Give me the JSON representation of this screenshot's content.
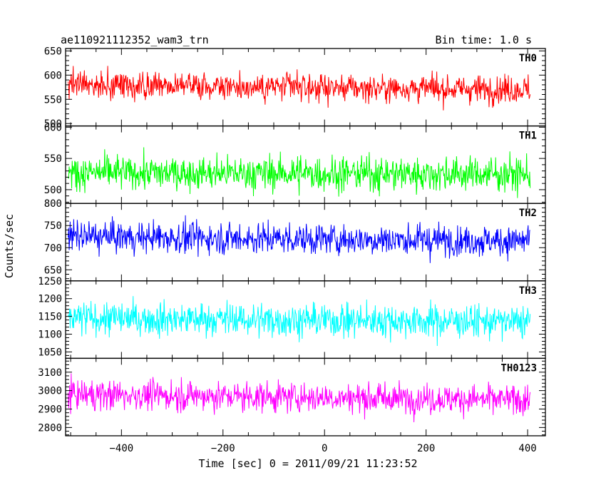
{
  "chart_data": {
    "type": "line",
    "title": "ae110921112352_wam3_trn",
    "bin_time_label": "Bin time: 1.0 s",
    "xlabel": "Time [sec] 0 = 2011/09/21 11:23:52",
    "ylabel": "Counts/sec",
    "xlim": [
      -510,
      435
    ],
    "x_ticks": [
      -400,
      -200,
      0,
      200,
      400
    ],
    "x_range": [
      -505,
      405
    ],
    "bin_time_s": 1.0,
    "grid": false,
    "panels": [
      {
        "name": "TH0",
        "color": "#ff0000",
        "ylim": [
          495,
          655
        ],
        "y_ticks": [
          500,
          550,
          600,
          650
        ],
        "mean": 580,
        "sigma": 22,
        "trend": [
          [
            -505,
            580
          ],
          [
            405,
            570
          ]
        ]
      },
      {
        "name": "TH1",
        "color": "#00ff00",
        "ylim": [
          478,
          602
        ],
        "y_ticks": [
          500,
          550,
          600
        ],
        "mean": 527,
        "sigma": 21,
        "trend": [
          [
            -505,
            527
          ],
          [
            405,
            525
          ]
        ]
      },
      {
        "name": "TH2",
        "color": "#0000ff",
        "ylim": [
          625,
          800
        ],
        "y_ticks": [
          650,
          700,
          750,
          800
        ],
        "mean": 720,
        "sigma": 27,
        "trend": [
          [
            -505,
            725
          ],
          [
            405,
            715
          ]
        ]
      },
      {
        "name": "TH3",
        "color": "#00ffff",
        "ylim": [
          1032,
          1250
        ],
        "y_ticks": [
          1050,
          1100,
          1150,
          1200,
          1250
        ],
        "mean": 1140,
        "sigma": 36,
        "trend": [
          [
            -505,
            1145
          ],
          [
            405,
            1135
          ]
        ]
      },
      {
        "name": "TH0123",
        "color": "#ff00ff",
        "ylim": [
          2755,
          3175
        ],
        "y_ticks": [
          2800,
          2900,
          3000,
          3100
        ],
        "mean": 2970,
        "sigma": 62,
        "trend": [
          [
            -505,
            2980
          ],
          [
            405,
            2950
          ]
        ]
      }
    ]
  }
}
